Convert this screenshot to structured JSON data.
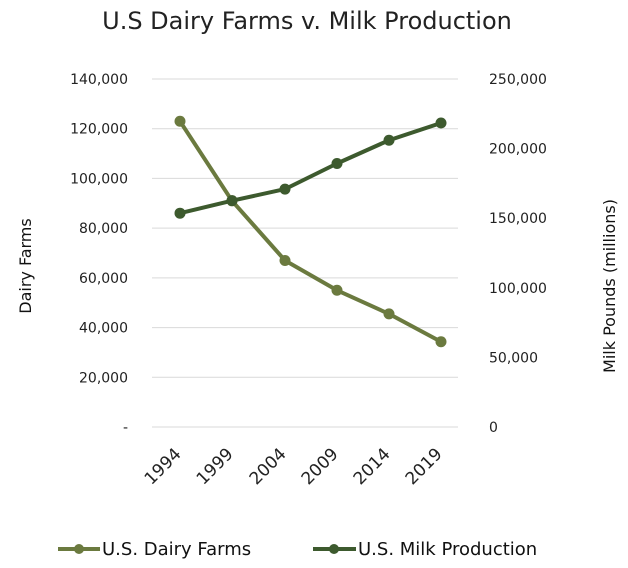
{
  "chart_data": {
    "type": "line",
    "title": "U.S Dairy Farms v. Milk Production",
    "categories": [
      "1994",
      "1999",
      "2004",
      "2009",
      "2014",
      "2019"
    ],
    "ylabel_left": "Dairy Farms",
    "ylabel_right": "Milk Pounds (millions)",
    "ylim_left": [
      0,
      140000
    ],
    "ylim_right": [
      0,
      250000
    ],
    "yticks_left": [
      "-",
      "20,000",
      "40,000",
      "60,000",
      "80,000",
      "100,000",
      "120,000",
      "140,000"
    ],
    "yticks_right": [
      "0",
      "50,000",
      "100,000",
      "150,000",
      "200,000",
      "250,000"
    ],
    "grid": true,
    "legend_position": "bottom",
    "series": [
      {
        "name": "U.S. Dairy Farms",
        "axis": "left",
        "color": "#6b7a3f",
        "values": [
          123000,
          91000,
          67000,
          55000,
          45500,
          34300
        ]
      },
      {
        "name": "U.S. Milk Production",
        "axis": "right",
        "color": "#3d5a2e",
        "values": [
          153600,
          162600,
          170900,
          189300,
          206000,
          218400
        ]
      }
    ]
  }
}
